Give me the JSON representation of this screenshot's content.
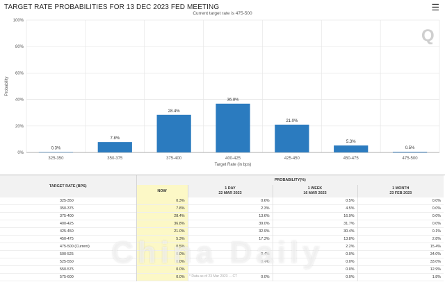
{
  "header": {
    "title": "TARGET RATE PROBABILITIES FOR 13 DEC 2023 FED MEETING",
    "subtitle": "Current target rate is 475-500",
    "menu_icon": "hamburger-menu-icon"
  },
  "chart_data": {
    "type": "bar",
    "categories": [
      "325-350",
      "350-375",
      "375-400",
      "400-425",
      "425-450",
      "450-475",
      "475-500"
    ],
    "values": [
      0.3,
      7.8,
      28.4,
      36.8,
      21.0,
      5.3,
      0.5
    ],
    "value_labels": [
      "0.3%",
      "7.8%",
      "28.4%",
      "36.8%",
      "21.0%",
      "5.3%",
      "0.5%"
    ],
    "xlabel": "Target Rate (in bps)",
    "ylabel": "Probability",
    "yticks": [
      "0%",
      "20%",
      "40%",
      "60%",
      "80%",
      "100%"
    ],
    "ylim": [
      0,
      100
    ],
    "bar_color": "#2b7bbf",
    "grid": true
  },
  "table": {
    "rate_header": "TARGET RATE (BPS)",
    "prob_header": "PROBABILITY(%)",
    "columns": [
      {
        "line1": "NOW",
        "line2": ""
      },
      {
        "line1": "1 DAY",
        "line2": "22 MAR 2023"
      },
      {
        "line1": "1 WEEK",
        "line2": "16 MAR 2023"
      },
      {
        "line1": "1 MONTH",
        "line2": "23 FEB 2023"
      }
    ],
    "rows": [
      {
        "rate": "325-350",
        "values": [
          "0.3%",
          "0.6%",
          "0.5%",
          "0.0%"
        ]
      },
      {
        "rate": "350-375",
        "values": [
          "7.8%",
          "2.3%",
          "4.5%",
          "0.0%"
        ]
      },
      {
        "rate": "375-400",
        "values": [
          "28.4%",
          "13.6%",
          "16.9%",
          "0.0%"
        ]
      },
      {
        "rate": "400-425",
        "values": [
          "36.8%",
          "39.0%",
          "31.7%",
          "0.0%"
        ]
      },
      {
        "rate": "425-450",
        "values": [
          "21.0%",
          "32.9%",
          "30.4%",
          "0.1%"
        ]
      },
      {
        "rate": "450-475",
        "values": [
          "5.3%",
          "17.3%",
          "13.8%",
          "2.8%"
        ]
      },
      {
        "rate": "475-500 (Current)",
        "values": [
          "0.5%",
          "",
          "2.2%",
          "15.4%"
        ]
      },
      {
        "rate": "500-525",
        "values": [
          "0.0%",
          "9.4%",
          "0.0%",
          "34.0%"
        ]
      },
      {
        "rate": "525-550",
        "values": [
          "0.0%",
          "0.4%",
          "0.0%",
          "33.0%"
        ]
      },
      {
        "rate": "550-575",
        "values": [
          "0.0%",
          "",
          "0.0%",
          "12.9%"
        ]
      },
      {
        "rate": "575-600",
        "values": [
          "0.0%",
          "0.0%",
          "0.0%",
          "1.8%"
        ]
      }
    ],
    "highlight_color": "#fcf8c6"
  },
  "footnote": "* Data as of 23 Mar 2023 ... CT",
  "watermark": {
    "brand": "Q",
    "overlay_text": "China Daily"
  }
}
